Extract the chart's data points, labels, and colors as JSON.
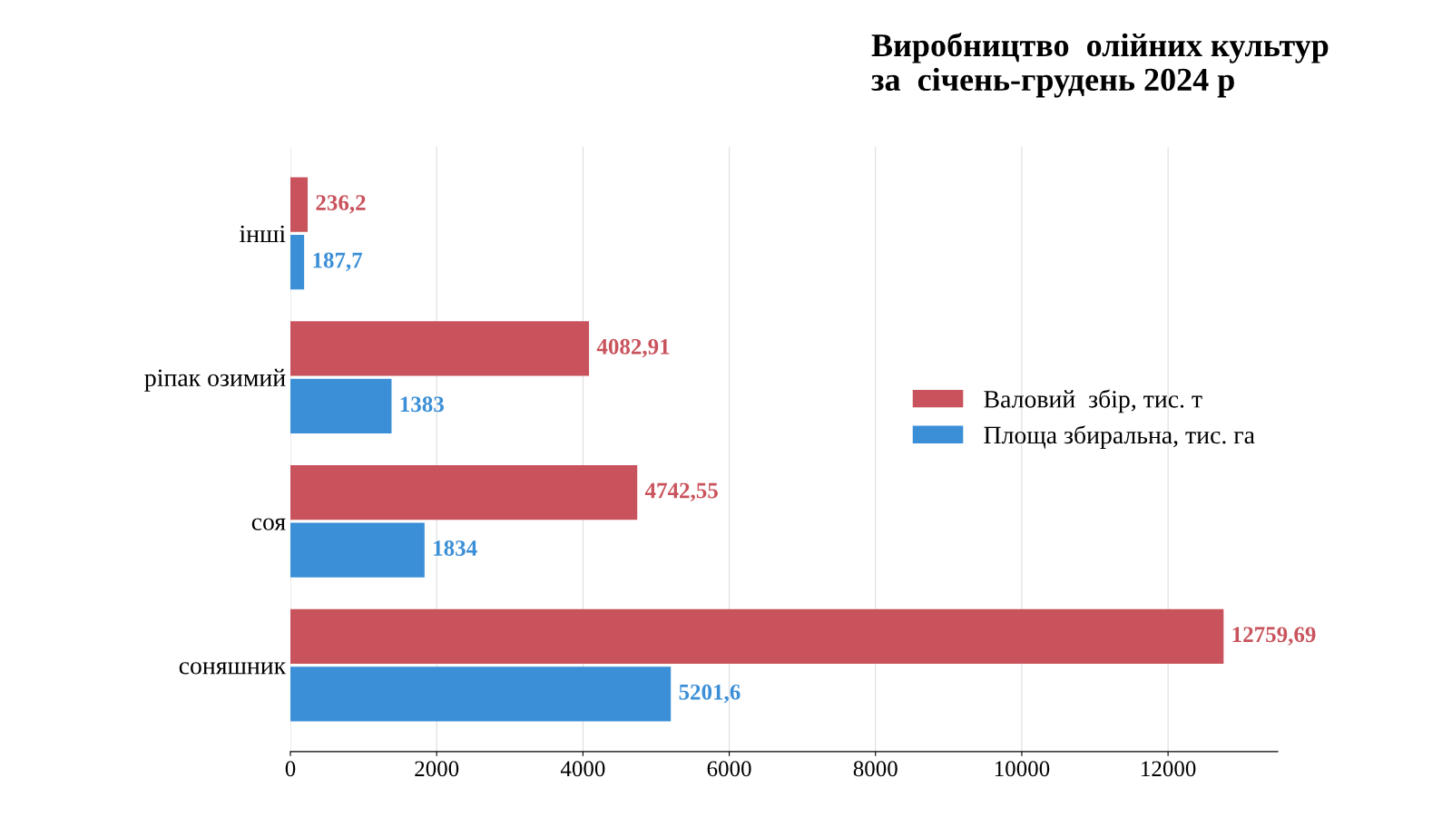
{
  "chart_data": {
    "type": "bar",
    "orientation": "horizontal",
    "title": "Виробництво  олійних культур\nза  січень-грудень 2024 р",
    "categories": [
      "інші",
      "ріпак озимий",
      "соя",
      "соняшник"
    ],
    "series": [
      {
        "name": "Валовий  збір, тис. т",
        "color": "#c9535c",
        "values": [
          236.2,
          4082.91,
          4742.55,
          12759.69
        ],
        "value_labels": [
          "236,2",
          "4082,91",
          "4742,55",
          "12759,69"
        ]
      },
      {
        "name": "Площа збиральна, тис. га",
        "color": "#3b8fd6",
        "values": [
          187.7,
          1383,
          1834,
          5201.6
        ],
        "value_labels": [
          "187,7",
          "1383",
          "1834",
          "5201,6"
        ]
      }
    ],
    "xlim": [
      0,
      13500
    ],
    "xticks": [
      0,
      2000,
      4000,
      6000,
      8000,
      10000,
      12000
    ],
    "grid": "x",
    "legend": "right"
  }
}
